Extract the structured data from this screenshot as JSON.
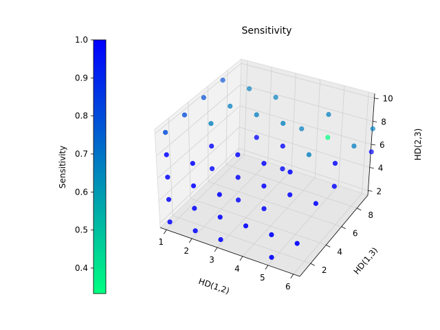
{
  "chart_data": {
    "type": "scatter",
    "projection": "3d",
    "title": "Sensitivity",
    "xlabel": "HD(1,2)",
    "ylabel": "HD(1,3)",
    "zlabel": "HD(2,3)",
    "xlim": [
      0.75,
      6.25
    ],
    "ylim": [
      0.6,
      9.4
    ],
    "zlim": [
      1.6,
      10.4
    ],
    "xticks": [
      1,
      2,
      3,
      4,
      5,
      6
    ],
    "yticks": [
      2,
      4,
      6,
      8
    ],
    "zticks": [
      2,
      4,
      6,
      8,
      10
    ],
    "colormap": "winter",
    "colorbar": {
      "label": "Sensitivity",
      "range": [
        0.333,
        1.0
      ],
      "ticks": [
        0.4,
        0.5,
        0.6,
        0.7,
        0.8,
        0.9,
        1.0
      ],
      "top_color": "#0000ff",
      "bottom_color": "#00ff80"
    },
    "grid": true,
    "points": [
      {
        "x": 1,
        "y": 1,
        "z": 2,
        "c": 1.0
      },
      {
        "x": 1,
        "y": 1,
        "z": 4,
        "c": 1.0
      },
      {
        "x": 1,
        "y": 1,
        "z": 6,
        "c": 1.0
      },
      {
        "x": 1,
        "y": 1,
        "z": 8,
        "c": 1.0
      },
      {
        "x": 1,
        "y": 1,
        "z": 10,
        "c": 0.8
      },
      {
        "x": 1,
        "y": 3,
        "z": 10,
        "c": 0.8
      },
      {
        "x": 1,
        "y": 5,
        "z": 10,
        "c": 0.8
      },
      {
        "x": 1,
        "y": 7,
        "z": 10,
        "c": 0.8
      },
      {
        "x": 2,
        "y": 1,
        "z": 2,
        "c": 1.0
      },
      {
        "x": 2,
        "y": 1,
        "z": 4,
        "c": 1.0
      },
      {
        "x": 2,
        "y": 1,
        "z": 6,
        "c": 1.0
      },
      {
        "x": 2,
        "y": 1,
        "z": 8,
        "c": 1.0
      },
      {
        "x": 2,
        "y": 3,
        "z": 6,
        "c": 1.0
      },
      {
        "x": 2,
        "y": 3,
        "z": 8,
        "c": 1.0
      },
      {
        "x": 2,
        "y": 3,
        "z": 10,
        "c": 0.67
      },
      {
        "x": 2,
        "y": 5,
        "z": 10,
        "c": 0.67
      },
      {
        "x": 2,
        "y": 7,
        "z": 10,
        "c": 0.67
      },
      {
        "x": 3,
        "y": 1,
        "z": 2,
        "c": 1.0
      },
      {
        "x": 3,
        "y": 1,
        "z": 4,
        "c": 1.0
      },
      {
        "x": 3,
        "y": 1,
        "z": 6,
        "c": 1.0
      },
      {
        "x": 3,
        "y": 3,
        "z": 4,
        "c": 1.0
      },
      {
        "x": 3,
        "y": 3,
        "z": 6,
        "c": 1.0
      },
      {
        "x": 3,
        "y": 3,
        "z": 8,
        "c": 1.0
      },
      {
        "x": 3,
        "y": 5,
        "z": 8,
        "c": 1.0
      },
      {
        "x": 3,
        "y": 5,
        "z": 10,
        "c": 0.67
      },
      {
        "x": 3,
        "y": 7,
        "z": 10,
        "c": 0.67
      },
      {
        "x": 4,
        "y": 1,
        "z": 4,
        "c": 1.0
      },
      {
        "x": 4,
        "y": 3,
        "z": 4,
        "c": 1.0
      },
      {
        "x": 4,
        "y": 3,
        "z": 6,
        "c": 1.0
      },
      {
        "x": 4,
        "y": 3,
        "z": 8,
        "c": 1.0
      },
      {
        "x": 4,
        "y": 5,
        "z": 6,
        "c": 1.0
      },
      {
        "x": 4,
        "y": 5,
        "z": 8,
        "c": 1.0
      },
      {
        "x": 4,
        "y": 5,
        "z": 10,
        "c": 0.67
      },
      {
        "x": 4,
        "y": 7,
        "z": 8,
        "c": 0.67
      },
      {
        "x": 5,
        "y": 1,
        "z": 2,
        "c": 1.0
      },
      {
        "x": 5,
        "y": 1,
        "z": 4,
        "c": 1.0
      },
      {
        "x": 5,
        "y": 3,
        "z": 6,
        "c": 1.0
      },
      {
        "x": 5,
        "y": 3,
        "z": 8,
        "c": 1.0
      },
      {
        "x": 5,
        "y": 5,
        "z": 8,
        "c": 0.67
      },
      {
        "x": 5,
        "y": 7,
        "z": 8,
        "c": 0.33
      },
      {
        "x": 5,
        "y": 7,
        "z": 10,
        "c": 0.67
      },
      {
        "x": 6,
        "y": 1,
        "z": 4,
        "c": 1.0
      },
      {
        "x": 6,
        "y": 3,
        "z": 6,
        "c": 1.0
      },
      {
        "x": 6,
        "y": 5,
        "z": 6,
        "c": 1.0
      },
      {
        "x": 6,
        "y": 5,
        "z": 8,
        "c": 1.0
      },
      {
        "x": 6,
        "y": 7,
        "z": 8,
        "c": 0.67
      },
      {
        "x": 6,
        "y": 9,
        "z": 6,
        "c": 1.0
      },
      {
        "x": 6,
        "y": 9,
        "z": 8,
        "c": 0.67
      }
    ]
  }
}
